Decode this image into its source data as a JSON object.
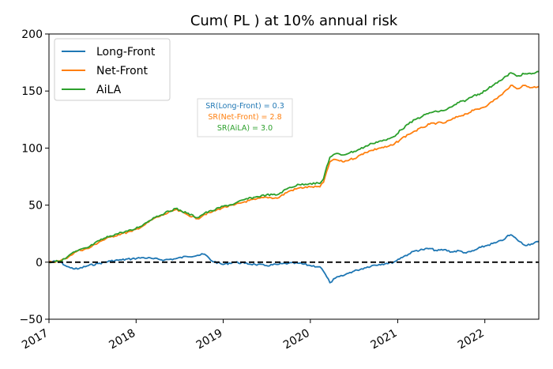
{
  "chart_data": {
    "type": "line",
    "title": "Cum( PL ) at 10% annual risk",
    "xlabel": "",
    "ylabel": "",
    "xlim": [
      "2017-01-01",
      "2022-08-15"
    ],
    "ylim": [
      -50,
      200
    ],
    "x_ticks": [
      "2017",
      "2018",
      "2019",
      "2020",
      "2021",
      "2022"
    ],
    "y_ticks": [
      -50,
      0,
      50,
      100,
      150,
      200
    ],
    "grid": false,
    "legend_position": "upper left",
    "zero_line": {
      "y": 0,
      "style": "dashed",
      "color": "#000000"
    },
    "annotations": [
      {
        "text": "SR(Long-Front) = 0.3",
        "color": "#1f77b4"
      },
      {
        "text": "SR(Net-Front) = 2.8",
        "color": "#ff7f0e"
      },
      {
        "text": "SR(AiLA) = 3.0",
        "color": "#2ca02c"
      }
    ],
    "series": [
      {
        "name": "Long-Front",
        "color": "#1f77b4",
        "x": [
          "2017-01-01",
          "2017-02-15",
          "2017-03-10",
          "2017-04-01",
          "2017-05-01",
          "2017-06-15",
          "2017-08-01",
          "2017-09-15",
          "2017-11-01",
          "2017-12-15",
          "2018-02-01",
          "2018-03-15",
          "2018-05-01",
          "2018-06-15",
          "2018-08-01",
          "2018-09-15",
          "2018-10-15",
          "2018-11-15",
          "2019-01-01",
          "2019-02-15",
          "2019-04-01",
          "2019-05-15",
          "2019-07-01",
          "2019-08-15",
          "2019-10-01",
          "2019-11-15",
          "2020-01-01",
          "2020-02-10",
          "2020-02-25",
          "2020-03-10",
          "2020-03-23",
          "2020-04-15",
          "2020-05-15",
          "2020-06-15",
          "2020-07-15",
          "2020-08-15",
          "2020-09-15",
          "2020-10-15",
          "2020-11-15",
          "2020-12-15",
          "2021-01-15",
          "2021-02-15",
          "2021-03-15",
          "2021-04-15",
          "2021-05-15",
          "2021-06-15",
          "2021-07-15",
          "2021-08-15",
          "2021-09-15",
          "2021-10-15",
          "2021-11-15",
          "2021-12-15",
          "2022-01-15",
          "2022-02-15",
          "2022-03-15",
          "2022-04-01",
          "2022-04-20",
          "2022-05-15",
          "2022-06-15",
          "2022-07-15",
          "2022-08-15"
        ],
        "y": [
          0,
          1,
          -3,
          -5,
          -6,
          -3,
          -1,
          1,
          2,
          3,
          4,
          3,
          2,
          3,
          5,
          6,
          7,
          1,
          -2,
          0,
          -1,
          -2,
          -3,
          -2,
          -1,
          -1,
          -3,
          -4,
          -8,
          -13,
          -18,
          -14,
          -12,
          -9,
          -7,
          -5,
          -3,
          -2,
          -1,
          0,
          4,
          7,
          10,
          11,
          12,
          10,
          11,
          9,
          10,
          8,
          10,
          13,
          15,
          17,
          19,
          22,
          24,
          20,
          15,
          16,
          18
        ]
      },
      {
        "name": "Net-Front",
        "color": "#ff7f0e",
        "x": [
          "2017-01-01",
          "2017-02-15",
          "2017-03-10",
          "2017-04-01",
          "2017-05-01",
          "2017-06-15",
          "2017-08-01",
          "2017-09-15",
          "2017-11-01",
          "2017-12-15",
          "2018-02-01",
          "2018-03-15",
          "2018-05-01",
          "2018-06-15",
          "2018-08-01",
          "2018-09-15",
          "2018-10-15",
          "2018-11-15",
          "2019-01-01",
          "2019-02-15",
          "2019-04-01",
          "2019-05-15",
          "2019-07-01",
          "2019-08-15",
          "2019-10-01",
          "2019-11-15",
          "2020-01-01",
          "2020-02-10",
          "2020-02-25",
          "2020-03-10",
          "2020-03-23",
          "2020-04-15",
          "2020-05-15",
          "2020-06-15",
          "2020-07-15",
          "2020-08-15",
          "2020-09-15",
          "2020-10-15",
          "2020-11-15",
          "2020-12-15",
          "2021-01-15",
          "2021-02-15",
          "2021-03-15",
          "2021-04-15",
          "2021-05-15",
          "2021-06-15",
          "2021-07-15",
          "2021-08-15",
          "2021-09-15",
          "2021-10-15",
          "2021-11-15",
          "2021-12-15",
          "2022-01-15",
          "2022-02-15",
          "2022-03-15",
          "2022-04-01",
          "2022-04-20",
          "2022-05-15",
          "2022-06-15",
          "2022-07-15",
          "2022-08-15"
        ],
        "y": [
          0,
          1,
          3,
          6,
          10,
          12,
          18,
          22,
          25,
          27,
          32,
          38,
          42,
          46,
          42,
          38,
          42,
          44,
          48,
          50,
          53,
          55,
          57,
          56,
          62,
          65,
          66,
          66,
          70,
          80,
          88,
          90,
          88,
          90,
          92,
          96,
          98,
          100,
          101,
          103,
          108,
          112,
          115,
          118,
          121,
          122,
          122,
          125,
          128,
          130,
          133,
          135,
          138,
          143,
          147,
          151,
          155,
          152,
          155,
          153,
          154
        ]
      },
      {
        "name": "AiLA",
        "color": "#2ca02c",
        "x": [
          "2017-01-01",
          "2017-02-15",
          "2017-03-10",
          "2017-04-01",
          "2017-05-01",
          "2017-06-15",
          "2017-08-01",
          "2017-09-15",
          "2017-11-01",
          "2017-12-15",
          "2018-02-01",
          "2018-03-15",
          "2018-05-01",
          "2018-06-15",
          "2018-08-01",
          "2018-09-15",
          "2018-10-15",
          "2018-11-15",
          "2019-01-01",
          "2019-02-15",
          "2019-04-01",
          "2019-05-15",
          "2019-07-01",
          "2019-08-15",
          "2019-10-01",
          "2019-11-15",
          "2020-01-01",
          "2020-02-10",
          "2020-02-25",
          "2020-03-10",
          "2020-03-23",
          "2020-04-15",
          "2020-05-15",
          "2020-06-15",
          "2020-07-15",
          "2020-08-15",
          "2020-09-15",
          "2020-10-15",
          "2020-11-15",
          "2020-12-15",
          "2021-01-15",
          "2021-02-15",
          "2021-03-15",
          "2021-04-15",
          "2021-05-15",
          "2021-06-15",
          "2021-07-15",
          "2021-08-15",
          "2021-09-15",
          "2021-10-15",
          "2021-11-15",
          "2021-12-15",
          "2022-01-15",
          "2022-02-15",
          "2022-03-15",
          "2022-04-01",
          "2022-04-20",
          "2022-05-15",
          "2022-06-15",
          "2022-07-15",
          "2022-08-15"
        ],
        "y": [
          0,
          1,
          3,
          7,
          10,
          13,
          19,
          23,
          26,
          28,
          33,
          39,
          43,
          47,
          43,
          39,
          43,
          45,
          49,
          51,
          55,
          57,
          59,
          59,
          65,
          68,
          69,
          69,
          73,
          84,
          92,
          95,
          94,
          96,
          98,
          101,
          104,
          106,
          107,
          110,
          116,
          121,
          125,
          128,
          131,
          132,
          133,
          136,
          140,
          142,
          146,
          148,
          152,
          157,
          160,
          163,
          166,
          163,
          165,
          165,
          167
        ]
      }
    ]
  }
}
